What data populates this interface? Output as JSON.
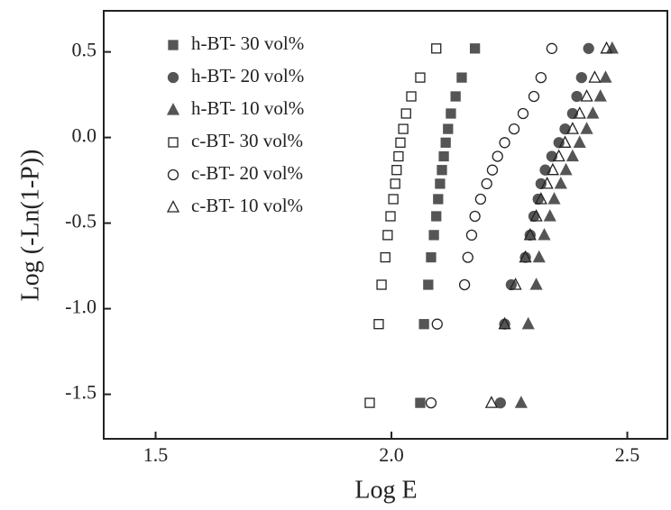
{
  "chart_data": {
    "type": "scatter",
    "xlabel": "Log E",
    "ylabel": "Log (-Ln(1-P))",
    "xlim": [
      1.39,
      2.585
    ],
    "ylim": [
      -1.76,
      0.74
    ],
    "xticks": [
      1.5,
      {
        "value": 2.0,
        "label": "2.0"
      },
      2.5
    ],
    "yticks": [
      0.5,
      {
        "value": 0.0,
        "label": "0.0"
      },
      -0.5,
      {
        "value": -1.0,
        "label": "-1.0"
      },
      -1.5
    ],
    "legend": "upper left",
    "series": [
      {
        "name": "h-BT- 30 vol%",
        "marker": "square",
        "filled": true,
        "color": "#555555",
        "x": [
          2.061,
          2.069,
          2.078,
          2.084,
          2.09,
          2.095,
          2.099,
          2.103,
          2.107,
          2.111,
          2.115,
          2.12,
          2.126,
          2.136,
          2.149,
          2.177
        ],
        "values": [
          -1.55,
          -1.09,
          -0.86,
          -0.7,
          -0.57,
          -0.46,
          -0.36,
          -0.27,
          -0.19,
          -0.11,
          -0.03,
          0.05,
          0.14,
          0.24,
          0.35,
          0.52
        ]
      },
      {
        "name": "h-BT- 20 vol%",
        "marker": "circle",
        "filled": true,
        "color": "#555555",
        "x": [
          2.231,
          2.24,
          2.254,
          2.284,
          2.294,
          2.302,
          2.311,
          2.317,
          2.326,
          2.34,
          2.355,
          2.368,
          2.384,
          2.393,
          2.403,
          2.418
        ],
        "values": [
          -1.55,
          -1.09,
          -0.86,
          -0.7,
          -0.57,
          -0.46,
          -0.36,
          -0.27,
          -0.19,
          -0.11,
          -0.03,
          0.05,
          0.14,
          0.24,
          0.35,
          0.52
        ]
      },
      {
        "name": "h-BT- 10 vol%",
        "marker": "triangle",
        "filled": true,
        "color": "#555555",
        "x": [
          2.275,
          2.29,
          2.307,
          2.313,
          2.324,
          2.336,
          2.345,
          2.359,
          2.37,
          2.384,
          2.399,
          2.414,
          2.427,
          2.443,
          2.454,
          2.468
        ],
        "values": [
          -1.55,
          -1.09,
          -0.86,
          -0.7,
          -0.57,
          -0.46,
          -0.36,
          -0.27,
          -0.19,
          -0.11,
          -0.03,
          0.05,
          0.14,
          0.24,
          0.35,
          0.52
        ]
      },
      {
        "name": "c-BT- 30 vol%",
        "marker": "square",
        "filled": false,
        "color": "#222222",
        "x": [
          1.954,
          1.973,
          1.979,
          1.987,
          1.992,
          1.998,
          2.004,
          2.008,
          2.011,
          2.015,
          2.019,
          2.025,
          2.031,
          2.042,
          2.061,
          2.095
        ],
        "values": [
          -1.55,
          -1.09,
          -0.86,
          -0.7,
          -0.57,
          -0.46,
          -0.36,
          -0.27,
          -0.19,
          -0.11,
          -0.03,
          0.05,
          0.14,
          0.24,
          0.35,
          0.52
        ]
      },
      {
        "name": "c-BT- 20 vol%",
        "marker": "circle",
        "filled": false,
        "color": "#222222",
        "x": [
          2.084,
          2.097,
          2.155,
          2.162,
          2.17,
          2.177,
          2.189,
          2.202,
          2.214,
          2.225,
          2.24,
          2.26,
          2.279,
          2.302,
          2.317,
          2.34
        ],
        "values": [
          -1.55,
          -1.09,
          -0.86,
          -0.7,
          -0.57,
          -0.46,
          -0.36,
          -0.27,
          -0.19,
          -0.11,
          -0.03,
          0.05,
          0.14,
          0.24,
          0.35,
          0.52
        ]
      },
      {
        "name": "c-BT- 10 vol%",
        "marker": "triangle",
        "filled": false,
        "color": "#222222",
        "x": [
          2.212,
          2.24,
          2.263,
          2.284,
          2.294,
          2.307,
          2.317,
          2.33,
          2.342,
          2.355,
          2.368,
          2.384,
          2.399,
          2.414,
          2.431,
          2.456
        ],
        "values": [
          -1.55,
          -1.09,
          -0.86,
          -0.7,
          -0.57,
          -0.46,
          -0.36,
          -0.27,
          -0.19,
          -0.11,
          -0.03,
          0.05,
          0.14,
          0.24,
          0.35,
          0.52
        ]
      }
    ]
  }
}
